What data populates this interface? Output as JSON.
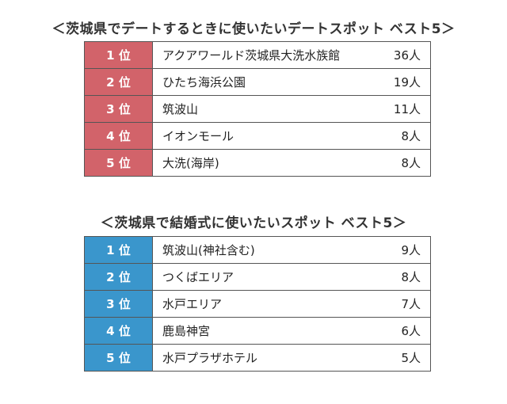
{
  "colors": {
    "ranking_1_accent": "#d2636a",
    "ranking_2_accent": "#3a96cc"
  },
  "rankings": [
    {
      "title": "＜茨城県でデートするときに使いたいデートスポット ベスト5＞",
      "rows": [
        {
          "rank": "1 位",
          "name": "アクアワールド茨城県大洗水族館",
          "count": "36人"
        },
        {
          "rank": "2 位",
          "name": "ひたち海浜公園",
          "count": "19人"
        },
        {
          "rank": "3 位",
          "name": "筑波山",
          "count": "11人"
        },
        {
          "rank": "4 位",
          "name": "イオンモール",
          "count": "8人"
        },
        {
          "rank": "5 位",
          "name": "大洗(海岸)",
          "count": "8人"
        }
      ]
    },
    {
      "title": "＜茨城県で結婚式に使いたいスポット ベスト5＞",
      "rows": [
        {
          "rank": "1 位",
          "name": "筑波山(神社含む)",
          "count": "9人"
        },
        {
          "rank": "2 位",
          "name": "つくばエリア",
          "count": "8人"
        },
        {
          "rank": "3 位",
          "name": "水戸エリア",
          "count": "7人"
        },
        {
          "rank": "4 位",
          "name": "鹿島神宮",
          "count": "6人"
        },
        {
          "rank": "5 位",
          "name": "水戸プラザホテル",
          "count": "5人"
        }
      ]
    }
  ]
}
